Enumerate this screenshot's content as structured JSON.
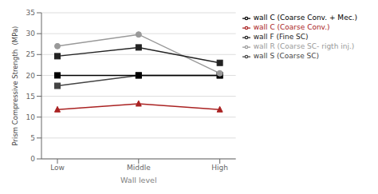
{
  "chart_data": {
    "type": "line",
    "categories": [
      "Low",
      "Middle",
      "High"
    ],
    "series": [
      {
        "name": "wall S (Coarse SC)",
        "color": "#444444",
        "marker": "square",
        "values": [
          17.5,
          20.0,
          20.0
        ]
      },
      {
        "name": "wall C (Coarse Conv.)",
        "color": "#aa2222",
        "marker": "triangle",
        "values": [
          11.8,
          13.2,
          11.8
        ]
      },
      {
        "name": "wall C (Coarse Conv. + Mec.)",
        "color": "#000000",
        "marker": "square",
        "values": [
          20.0,
          20.0,
          20.0
        ]
      },
      {
        "name": "wall R (Coarse SC- rigth inj.)",
        "color": "#999999",
        "marker": "circle",
        "values": [
          27.0,
          29.8,
          20.5
        ]
      },
      {
        "name": "wall F (Fine SC)",
        "color": "#222222",
        "marker": "square",
        "values": [
          24.6,
          26.7,
          23.0
        ]
      }
    ],
    "xlabel": "Wall level",
    "ylabel": "Prism Compressive Strength  (MPa)",
    "ylim": [
      0,
      35
    ],
    "yticks": [
      0,
      5,
      10,
      15,
      20,
      25,
      30,
      35
    ],
    "grid": true,
    "legend": "upper right"
  }
}
